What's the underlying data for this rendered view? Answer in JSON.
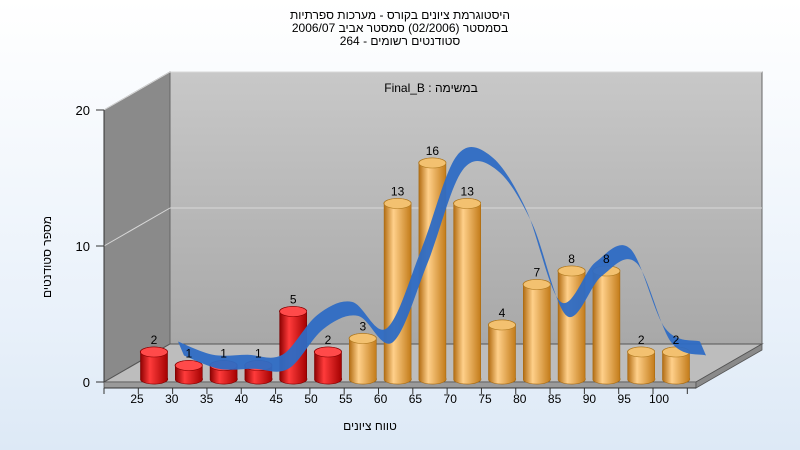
{
  "titles": {
    "line1": "היסטוגרמת ציונים בקורס - מערכות ספרתיות",
    "line2": "בסמסטר  (02/2006)  סמסטר אביב 2006/07",
    "line3": "סטודנטים רשומים - 264"
  },
  "chart_data": {
    "type": "bar",
    "subtitle": "Final_B : במשימה",
    "xlabel": "טווח ציונים",
    "ylabel": "מספר סטודנטים",
    "categories": [
      "25",
      "30",
      "35",
      "40",
      "45",
      "50",
      "55",
      "60",
      "65",
      "70",
      "75",
      "80",
      "85",
      "90",
      "95",
      "100"
    ],
    "values": [
      2,
      1,
      1,
      1,
      5,
      2,
      3,
      13,
      16,
      13,
      4,
      7,
      8,
      8,
      2,
      2
    ],
    "bar_colors": [
      "#e01818",
      "#e01818",
      "#e01818",
      "#e01818",
      "#e01818",
      "#e01818",
      "#e8a640",
      "#e8a640",
      "#e8a640",
      "#e8a640",
      "#e8a640",
      "#e8a640",
      "#e8a640",
      "#e8a640",
      "#e8a640",
      "#e8a640"
    ],
    "trend_series": [
      2,
      1,
      1,
      1,
      4,
      5,
      3,
      9,
      16,
      16,
      12,
      5,
      8,
      9,
      3,
      2
    ],
    "trend_color": "#2e6cc4",
    "yticks": [
      0,
      10,
      20
    ],
    "ylim": [
      0,
      20
    ],
    "grid": true
  }
}
